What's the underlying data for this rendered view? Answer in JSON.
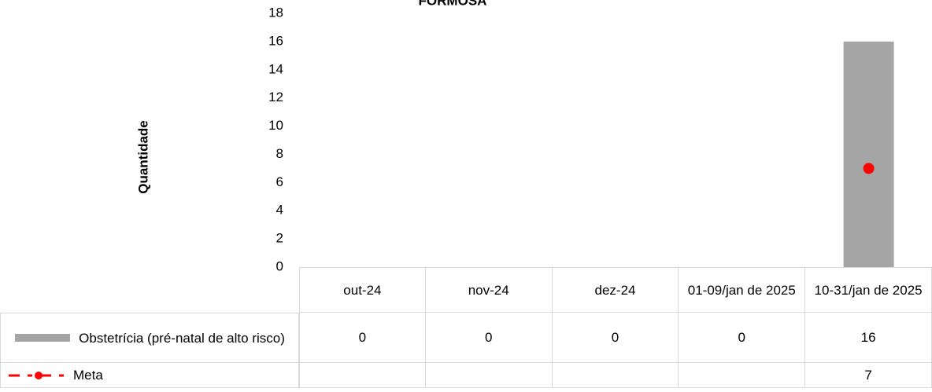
{
  "chart_data": {
    "type": "bar",
    "title": "FORMOSA",
    "y_label": "Quantidade",
    "categories": [
      "out-24",
      "nov-24",
      "dez-24",
      "01-09/jan de 2025",
      "10-31/jan de 2025"
    ],
    "series": [
      {
        "name": "Obstetrícia (pré-natal de alto risco)",
        "color": "#a5a5a5",
        "type": "bar",
        "values": [
          0,
          0,
          0,
          0,
          16
        ]
      },
      {
        "name": "Meta",
        "color": "#ff0000",
        "type": "line",
        "values": [
          null,
          null,
          null,
          null,
          7
        ]
      }
    ],
    "ylim": [
      0,
      18
    ],
    "yticks": [
      0,
      2,
      4,
      6,
      8,
      10,
      12,
      14,
      16,
      18
    ],
    "grid": false,
    "data_table": true
  }
}
